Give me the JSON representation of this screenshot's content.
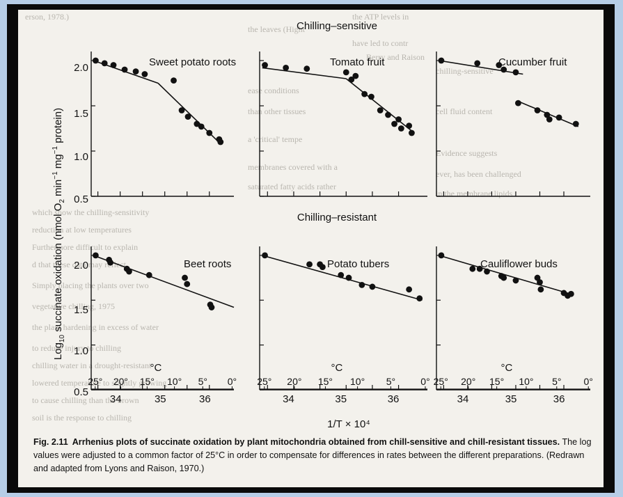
{
  "figure": {
    "section_top": "Chilling–sensitive",
    "section_bottom": "Chilling–resistant",
    "ylabel_prefix": "Log",
    "ylabel_sub": "10",
    "ylabel_rest": " succinate oxidation (nmol O",
    "ylabel_o2": "2",
    "ylabel_tail": " min",
    "ylabel_exp1": "−1",
    "ylabel_mg": " mg",
    "ylabel_exp2": "−1",
    "ylabel_end": " protein)",
    "xlabel": "1/T × 10⁴",
    "celsius_unit": "°C",
    "celsius_ticks": [
      "25°",
      "20°",
      "15°",
      "10°",
      "5°",
      "0°"
    ],
    "celsius_values": [
      25,
      20,
      15,
      10,
      5,
      0
    ],
    "x_ticks": [
      "34",
      "35",
      "36"
    ],
    "y_ticks": [
      "0.5",
      "1.0",
      "1.5",
      "2.0"
    ]
  },
  "caption": {
    "label": "Fig. 2.11",
    "title": "Arrhenius plots of succinate oxidation by plant mitochondria obtained from chill-sensitive and chill-resistant tissues.",
    "body": " The log values were adjusted to a common factor of 25°C in order to compensate for differences in rates between the different preparations. (Redrawn and adapted from Lyons and Raison, 1970.)"
  },
  "chart_data": [
    {
      "type": "scatter",
      "title": "Sweet potato roots",
      "group": "Chilling–sensitive",
      "xlabel": "1/T × 10⁴",
      "ylabel": "Log10 succinate oxidation",
      "xlim": [
        33.45,
        36.65
      ],
      "ylim": [
        0.5,
        2.1
      ],
      "points": [
        [
          33.55,
          2.0
        ],
        [
          33.75,
          1.97
        ],
        [
          33.95,
          1.95
        ],
        [
          34.2,
          1.9
        ],
        [
          34.45,
          1.88
        ],
        [
          34.65,
          1.85
        ],
        [
          35.3,
          1.78
        ],
        [
          35.48,
          1.45
        ],
        [
          35.62,
          1.38
        ],
        [
          35.82,
          1.3
        ],
        [
          35.92,
          1.27
        ],
        [
          36.1,
          1.2
        ],
        [
          36.32,
          1.13
        ],
        [
          36.35,
          1.1
        ]
      ],
      "fit_lines": [
        [
          [
            33.5,
            2.0
          ],
          [
            34.95,
            1.75
          ]
        ],
        [
          [
            34.95,
            1.75
          ],
          [
            36.35,
            1.08
          ]
        ]
      ]
    },
    {
      "type": "scatter",
      "title": "Tomato fruit",
      "group": "Chilling–sensitive",
      "xlim": [
        33.45,
        36.65
      ],
      "ylim": [
        0.5,
        2.1
      ],
      "points": [
        [
          33.55,
          1.95
        ],
        [
          33.95,
          1.92
        ],
        [
          34.35,
          1.91
        ],
        [
          35.1,
          1.87
        ],
        [
          35.2,
          1.79
        ],
        [
          35.28,
          1.83
        ],
        [
          35.45,
          1.63
        ],
        [
          35.58,
          1.6
        ],
        [
          35.75,
          1.45
        ],
        [
          35.9,
          1.4
        ],
        [
          36.02,
          1.3
        ],
        [
          36.1,
          1.35
        ],
        [
          36.15,
          1.25
        ],
        [
          36.3,
          1.28
        ],
        [
          36.35,
          1.2
        ]
      ],
      "fit_lines": [
        [
          [
            33.5,
            1.92
          ],
          [
            35.1,
            1.8
          ]
        ],
        [
          [
            35.1,
            1.8
          ],
          [
            36.4,
            1.2
          ]
        ]
      ]
    },
    {
      "type": "scatter",
      "title": "Cucumber fruit",
      "group": "Chilling–sensitive",
      "xlim": [
        33.45,
        36.65
      ],
      "ylim": [
        0.5,
        2.1
      ],
      "points": [
        [
          33.55,
          2.0
        ],
        [
          34.3,
          1.97
        ],
        [
          34.75,
          1.95
        ],
        [
          34.85,
          1.9
        ],
        [
          35.1,
          1.87
        ],
        [
          35.15,
          1.53
        ],
        [
          35.55,
          1.45
        ],
        [
          35.75,
          1.4
        ],
        [
          35.8,
          1.35
        ],
        [
          36.0,
          1.37
        ],
        [
          36.35,
          1.3
        ]
      ],
      "fit_lines": [
        [
          [
            33.5,
            2.0
          ],
          [
            35.25,
            1.85
          ]
        ],
        [
          [
            35.15,
            1.55
          ],
          [
            36.4,
            1.27
          ]
        ]
      ]
    },
    {
      "type": "scatter",
      "title": "Beet roots",
      "group": "Chilling–resistant",
      "xlim": [
        33.45,
        36.65
      ],
      "ylim": [
        0.5,
        2.1
      ],
      "points": [
        [
          33.55,
          2.0
        ],
        [
          33.85,
          1.95
        ],
        [
          33.88,
          1.92
        ],
        [
          34.25,
          1.85
        ],
        [
          34.3,
          1.82
        ],
        [
          34.75,
          1.78
        ],
        [
          35.55,
          1.75
        ],
        [
          35.6,
          1.68
        ],
        [
          36.12,
          1.45
        ],
        [
          36.15,
          1.42
        ]
      ],
      "fit_lines": [
        [
          [
            33.5,
            2.0
          ],
          [
            36.65,
            1.42
          ]
        ]
      ]
    },
    {
      "type": "scatter",
      "title": "Potato tubers",
      "group": "Chilling–resistant",
      "xlim": [
        33.45,
        36.65
      ],
      "ylim": [
        0.5,
        2.1
      ],
      "points": [
        [
          33.55,
          2.0
        ],
        [
          34.4,
          1.9
        ],
        [
          34.6,
          1.9
        ],
        [
          34.65,
          1.87
        ],
        [
          35.0,
          1.78
        ],
        [
          35.15,
          1.75
        ],
        [
          35.4,
          1.67
        ],
        [
          35.6,
          1.65
        ],
        [
          36.3,
          1.62
        ],
        [
          36.5,
          1.52
        ]
      ],
      "fit_lines": [
        [
          [
            33.5,
            2.0
          ],
          [
            36.55,
            1.5
          ]
        ]
      ]
    },
    {
      "type": "scatter",
      "title": "Cauliflower buds",
      "group": "Chilling–resistant",
      "xlim": [
        33.45,
        36.65
      ],
      "ylim": [
        0.5,
        2.1
      ],
      "points": [
        [
          33.55,
          2.0
        ],
        [
          34.2,
          1.85
        ],
        [
          34.35,
          1.85
        ],
        [
          34.5,
          1.82
        ],
        [
          34.8,
          1.77
        ],
        [
          34.85,
          1.75
        ],
        [
          35.1,
          1.72
        ],
        [
          35.55,
          1.75
        ],
        [
          35.6,
          1.7
        ],
        [
          35.62,
          1.62
        ],
        [
          36.1,
          1.58
        ],
        [
          36.18,
          1.55
        ],
        [
          36.25,
          1.57
        ]
      ],
      "fit_lines": [
        [
          [
            33.5,
            2.0
          ],
          [
            36.3,
            1.56
          ]
        ]
      ]
    }
  ]
}
